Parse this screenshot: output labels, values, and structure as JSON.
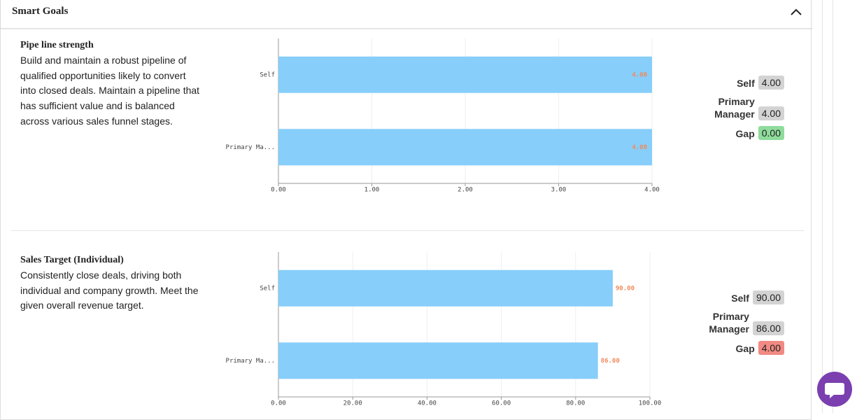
{
  "header": {
    "title": "Smart Goals"
  },
  "goals": [
    {
      "title": "Pipe line strength",
      "description": "Build and maintain a robust pipeline of qualified opportunities likely to convert into closed deals. Maintain a pipeline that has sufficient value and is balanced across various sales funnel stages.",
      "scores": [
        {
          "label": "Self",
          "value": "4.00",
          "color": "#d3d3d3"
        },
        {
          "label": "Primary Manager",
          "value": "4.00",
          "color": "#d3d3d3"
        },
        {
          "label": "Gap",
          "value": "0.00",
          "color": "#8fdc9c"
        }
      ]
    },
    {
      "title": "Sales Target (Individual)",
      "description": "Consistently close deals, driving both individual and company growth. Meet the given overall revenue target.",
      "scores": [
        {
          "label": "Self",
          "value": "90.00",
          "color": "#d3d3d3"
        },
        {
          "label": "Primary Manager",
          "value": "86.00",
          "color": "#d3d3d3"
        },
        {
          "label": "Gap",
          "value": "4.00",
          "color": "#f08a82"
        }
      ]
    }
  ],
  "chart_data": [
    {
      "type": "bar",
      "orientation": "horizontal",
      "color": "#87cefa",
      "label_color": "#f08a5d",
      "grid": true,
      "categories": [
        "Self",
        "Primary Ma..."
      ],
      "values": [
        4,
        4
      ],
      "value_labels": [
        "4.00",
        "4.00"
      ],
      "xlim": [
        0,
        4
      ],
      "xticks": [
        {
          "value": 0,
          "label": "0.00"
        },
        {
          "value": 1,
          "label": "1.00"
        },
        {
          "value": 2,
          "label": "2.00"
        },
        {
          "value": 3,
          "label": "3.00"
        },
        {
          "value": 4,
          "label": "4.00"
        }
      ]
    },
    {
      "type": "bar",
      "orientation": "horizontal",
      "color": "#87cefa",
      "label_color": "#f08a5d",
      "grid": true,
      "categories": [
        "Self",
        "Primary Ma..."
      ],
      "values": [
        90,
        86
      ],
      "value_labels": [
        "90.00",
        "86.00"
      ],
      "xlim": [
        0,
        100
      ],
      "xticks": [
        {
          "value": 0,
          "label": "0.00"
        },
        {
          "value": 20,
          "label": "20.00"
        },
        {
          "value": 40,
          "label": "40.00"
        },
        {
          "value": 60,
          "label": "60.00"
        },
        {
          "value": 80,
          "label": "80.00"
        },
        {
          "value": 100,
          "label": "100.00"
        }
      ]
    }
  ]
}
